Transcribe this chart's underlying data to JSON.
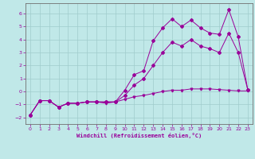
{
  "xlabel": "Windchill (Refroidissement éolien,°C)",
  "xlim": [
    -0.5,
    23.5
  ],
  "ylim": [
    -2.5,
    6.8
  ],
  "xticks": [
    0,
    1,
    2,
    3,
    4,
    5,
    6,
    7,
    8,
    9,
    10,
    11,
    12,
    13,
    14,
    15,
    16,
    17,
    18,
    19,
    20,
    21,
    22,
    23
  ],
  "yticks": [
    -2,
    -1,
    0,
    1,
    2,
    3,
    4,
    5,
    6
  ],
  "bg_color": "#c0e8e8",
  "grid_color": "#a0cccc",
  "line_color": "#990099",
  "line1_x": [
    0,
    1,
    2,
    3,
    4,
    5,
    6,
    7,
    8,
    9,
    10,
    11,
    12,
    13,
    14,
    15,
    16,
    17,
    18,
    19,
    20,
    21,
    22,
    23
  ],
  "line1_y": [
    -1.8,
    -0.7,
    -0.7,
    -1.2,
    -0.9,
    -0.9,
    -0.8,
    -0.8,
    -0.9,
    -0.8,
    -0.6,
    -0.4,
    -0.3,
    -0.15,
    0.0,
    0.1,
    0.1,
    0.2,
    0.2,
    0.2,
    0.15,
    0.1,
    0.05,
    0.05
  ],
  "line2_x": [
    0,
    1,
    2,
    3,
    4,
    5,
    6,
    7,
    8,
    9,
    10,
    11,
    12,
    13,
    14,
    15,
    16,
    17,
    18,
    19,
    20,
    21,
    22,
    23
  ],
  "line2_y": [
    -1.8,
    -0.7,
    -0.7,
    -1.2,
    -0.9,
    -0.9,
    -0.8,
    -0.8,
    -0.8,
    -0.8,
    0.1,
    1.3,
    1.6,
    3.9,
    4.9,
    5.6,
    5.0,
    5.5,
    4.9,
    4.5,
    4.4,
    6.3,
    4.2,
    0.15
  ],
  "line3_x": [
    0,
    1,
    2,
    3,
    4,
    5,
    6,
    7,
    8,
    9,
    10,
    11,
    12,
    13,
    14,
    15,
    16,
    17,
    18,
    19,
    20,
    21,
    22,
    23
  ],
  "line3_y": [
    -1.8,
    -0.7,
    -0.7,
    -1.2,
    -0.9,
    -0.9,
    -0.8,
    -0.8,
    -0.8,
    -0.8,
    -0.3,
    0.5,
    1.0,
    2.0,
    3.0,
    3.8,
    3.5,
    4.0,
    3.5,
    3.3,
    3.0,
    4.5,
    3.0,
    0.15
  ]
}
